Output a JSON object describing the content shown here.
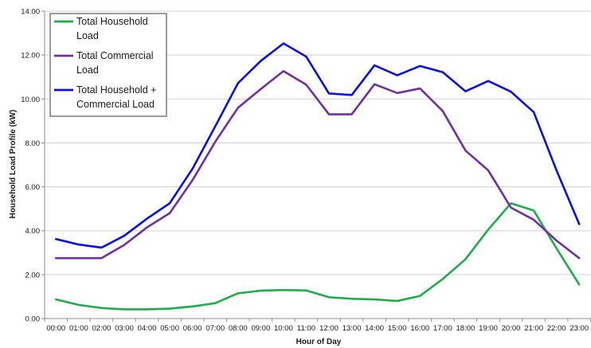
{
  "chart_data": {
    "type": "line",
    "xlabel": "Hour of Day",
    "ylabel": "Household Load Profile (kW)",
    "ylim": [
      0,
      14
    ],
    "yticks": [
      "0.00",
      "2.00",
      "4.00",
      "6.00",
      "8.00",
      "10.00",
      "12.00",
      "14.00"
    ],
    "categories": [
      "00:00",
      "01:00",
      "02:00",
      "03:00",
      "04:00",
      "05:00",
      "06:00",
      "07:00",
      "08:00",
      "09:00",
      "10:00",
      "11:00",
      "12:00",
      "13:00",
      "14:00",
      "15:00",
      "16:00",
      "17:00",
      "18:00",
      "19:00",
      "20:00",
      "21:00",
      "22:00",
      "23:00"
    ],
    "grid": "horizontal",
    "legend_position": "top-left",
    "series": [
      {
        "name": "Total Household Load",
        "legend_lines": [
          "Total Household",
          "Load"
        ],
        "color": "#1fad4b",
        "values": [
          0.87,
          0.62,
          0.48,
          0.42,
          0.42,
          0.45,
          0.55,
          0.7,
          1.15,
          1.27,
          1.3,
          1.28,
          0.97,
          0.9,
          0.87,
          0.8,
          1.03,
          1.8,
          2.7,
          4.05,
          5.25,
          4.92,
          3.2,
          1.55
        ]
      },
      {
        "name": "Total Commercial Load",
        "legend_lines": [
          "Total Commercial",
          "Load"
        ],
        "color": "#7030a0",
        "values": [
          2.75,
          2.75,
          2.75,
          3.35,
          4.15,
          4.8,
          6.3,
          8.05,
          9.6,
          10.45,
          11.27,
          10.65,
          9.3,
          9.3,
          10.67,
          10.27,
          10.48,
          9.45,
          7.65,
          6.75,
          5.05,
          4.5,
          3.55,
          2.75
        ]
      },
      {
        "name": "Total Household + Commercial Load",
        "legend_lines": [
          "Total Household +",
          "Commercial Load"
        ],
        "color": "#0a10e6",
        "values": [
          3.62,
          3.37,
          3.23,
          3.77,
          4.55,
          5.25,
          6.82,
          8.75,
          10.72,
          11.73,
          12.53,
          11.93,
          10.25,
          10.18,
          11.53,
          11.08,
          11.5,
          11.22,
          10.35,
          10.82,
          10.33,
          9.4,
          6.75,
          4.3
        ]
      }
    ]
  }
}
